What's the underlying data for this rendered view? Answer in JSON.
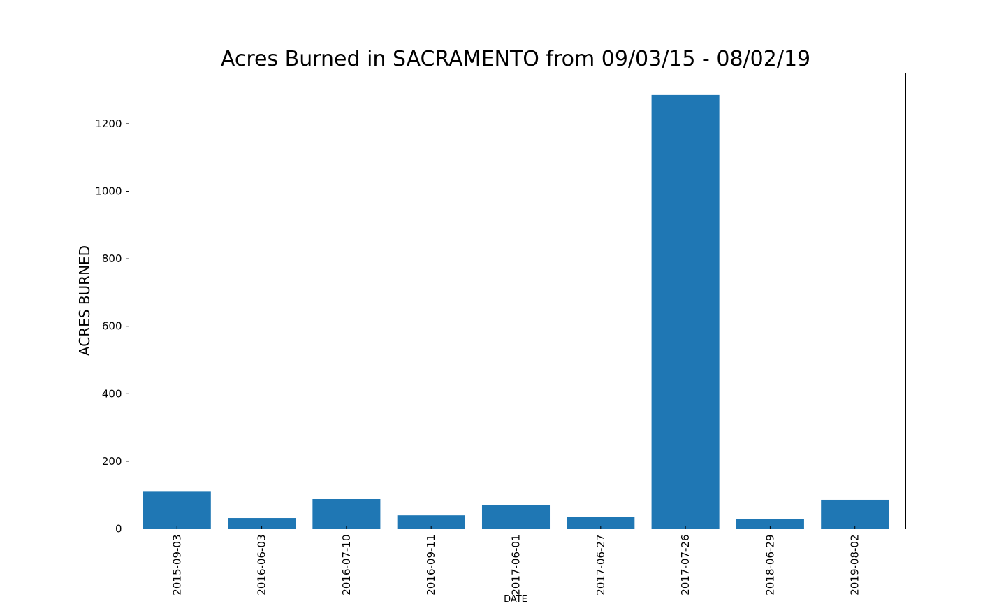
{
  "chart_data": {
    "type": "bar",
    "title": "Acres Burned in SACRAMENTO from 09/03/15 - 08/02/19",
    "xlabel": "DATE",
    "ylabel": "ACRES BURNED",
    "categories": [
      "2015-09-03",
      "2016-06-03",
      "2016-07-10",
      "2016-09-11",
      "2017-06-01",
      "2017-06-27",
      "2017-07-26",
      "2018-06-29",
      "2019-08-02"
    ],
    "values": [
      110,
      32,
      88,
      40,
      70,
      36,
      1285,
      30,
      86
    ],
    "ylim": [
      0,
      1350
    ],
    "yticks": [
      0,
      200,
      400,
      600,
      800,
      1000,
      1200
    ],
    "bar_color": "#1f77b4",
    "grid": false
  }
}
